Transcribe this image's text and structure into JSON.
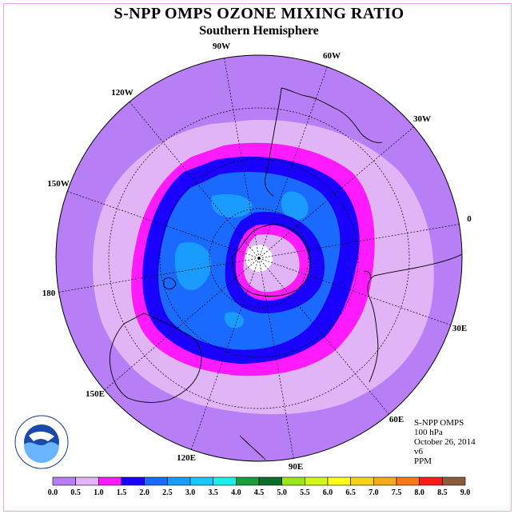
{
  "title": "S-NPP OMPS OZONE MIXING RATIO",
  "subtitle": "Southern Hemisphere",
  "longitude_labels": {
    "lon_90W": "90W",
    "lon_60W": "60W",
    "lon_30W": "30W",
    "lon_0": "0",
    "lon_30E": "30E",
    "lon_60E": "60E",
    "lon_90E": "90E",
    "lon_120E": "120E",
    "lon_150E": "150E",
    "lon_180": "180",
    "lon_150W": "150W",
    "lon_120W": "120W"
  },
  "info": {
    "instrument": "S-NPP OMPS",
    "level": "100 hPa",
    "date": "October 26, 2014",
    "version": "v6",
    "units": "PPM"
  },
  "logo_text": "NOAA",
  "colorbar": {
    "ticks": [
      "0.0",
      "0.5",
      "1.0",
      "1.5",
      "2.0",
      "2.5",
      "3.0",
      "3.5",
      "4.0",
      "4.5",
      "5.0",
      "5.5",
      "6.0",
      "6.5",
      "7.0",
      "7.5",
      "8.0",
      "8.5",
      "9.0"
    ],
    "colors": [
      "#b87ef5",
      "#e0b4f5",
      "#ff1aff",
      "#1a00ff",
      "#1a6aff",
      "#1a9cff",
      "#1ac6ff",
      "#1af0e6",
      "#1a9c3c",
      "#0a6e2a",
      "#9ae61a",
      "#d2f51a",
      "#ffff1a",
      "#f5d21a",
      "#f5aa1a",
      "#f5781a",
      "#ff1a1a",
      "#8c5a3c"
    ]
  }
}
